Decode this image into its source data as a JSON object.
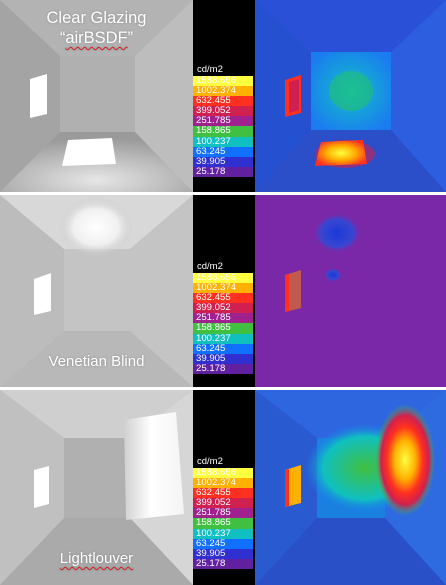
{
  "panels": [
    {
      "caption_lines": [
        "Clear Glazing",
        "“airBSDF”"
      ],
      "caption_underlined_word": "airBSDF"
    },
    {
      "caption_lines": [
        "Venetian Blind"
      ]
    },
    {
      "caption_lines": [
        "Lightlouver"
      ]
    }
  ],
  "legend": {
    "unit": "cd/m2",
    "values": [
      "1588.656",
      "1002.374",
      "632.455",
      "399.052",
      "251.785",
      "158.865",
      "100.237",
      "63.245",
      "39.905",
      "25.178"
    ],
    "colors": [
      "#ffff40",
      "#ffb000",
      "#ff3020",
      "#d02050",
      "#a02090",
      "#40c040",
      "#10c0c0",
      "#1070ff",
      "#3030d0",
      "#6020a0"
    ]
  },
  "colors": {
    "background": "#ffffff",
    "legend_background": "#000000",
    "falsecolor_base": "#2b5ed8",
    "falsecolor_venetian": "#7a28a8"
  }
}
